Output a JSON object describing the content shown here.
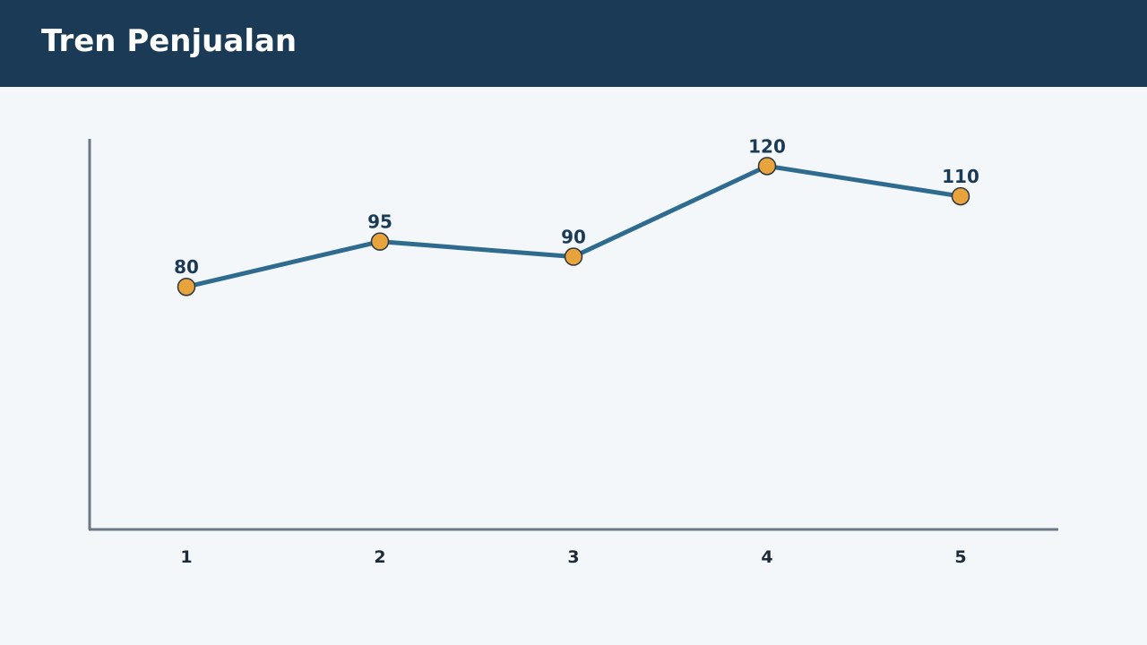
{
  "chart_data": {
    "type": "line",
    "title": "Tren Penjualan",
    "categories": [
      "1",
      "2",
      "3",
      "4",
      "5"
    ],
    "values": [
      80,
      95,
      90,
      120,
      110
    ],
    "color": "#2e6b8e",
    "marker_color": "#e8a33d",
    "ylim": [
      0,
      129
    ],
    "grid": false
  }
}
